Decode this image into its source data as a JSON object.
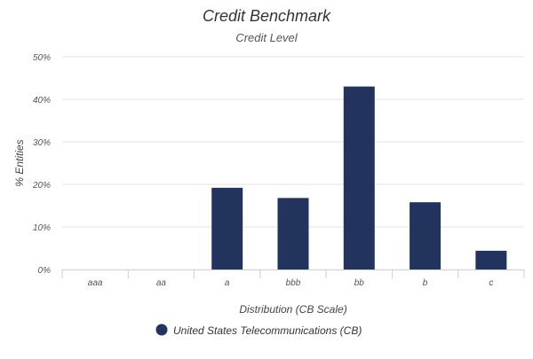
{
  "chart_data": {
    "type": "bar",
    "title": "Credit Benchmark",
    "subtitle": "Credit Level",
    "xlabel": "Distribution (CB Scale)",
    "ylabel": "% Entities",
    "categories": [
      "aaa",
      "aa",
      "a",
      "bbb",
      "bb",
      "b",
      "c"
    ],
    "series": [
      {
        "name": "United States Telecommunications (CB)",
        "color": "#22345e",
        "values": [
          0,
          0,
          19.2,
          16.8,
          43.0,
          15.8,
          4.4
        ]
      }
    ],
    "ylim": [
      0,
      50
    ],
    "yticks": [
      0,
      10,
      20,
      30,
      40,
      50
    ],
    "ytick_labels": [
      "0%",
      "10%",
      "20%",
      "30%",
      "40%",
      "50%"
    ],
    "grid": true,
    "legend_position": "bottom"
  }
}
